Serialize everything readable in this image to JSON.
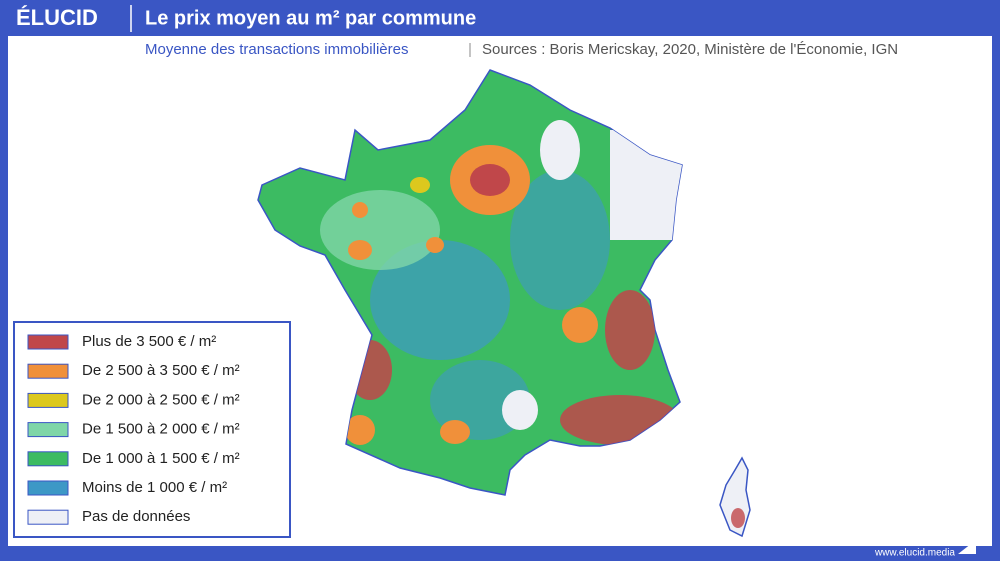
{
  "header": {
    "logo": "ÉLUCID",
    "title": "Le prix moyen au m² par commune",
    "subtitle": "Moyenne des transactions immobilières",
    "sources": "Sources : Boris Mericskay, 2020, Ministère de l'Économie, IGN"
  },
  "legend": {
    "items": [
      {
        "label": "Plus de 3 500 € / m²",
        "color": "#c0474a"
      },
      {
        "label": "De 2 500 à 3 500 € / m²",
        "color": "#f0903a"
      },
      {
        "label": "De 2 000 à 2 500 € / m²",
        "color": "#dcc81e"
      },
      {
        "label": "De 1 500 à 2 000 € / m²",
        "color": "#7fd6a8"
      },
      {
        "label": "De 1 000 à 1 500 € / m²",
        "color": "#3cbb62"
      },
      {
        "label": "Moins de 1 000 € / m²",
        "color": "#3d98c6"
      },
      {
        "label": "Pas de données",
        "color": "#eef0f6"
      }
    ]
  },
  "footer": {
    "url": "www.elucid.media"
  }
}
